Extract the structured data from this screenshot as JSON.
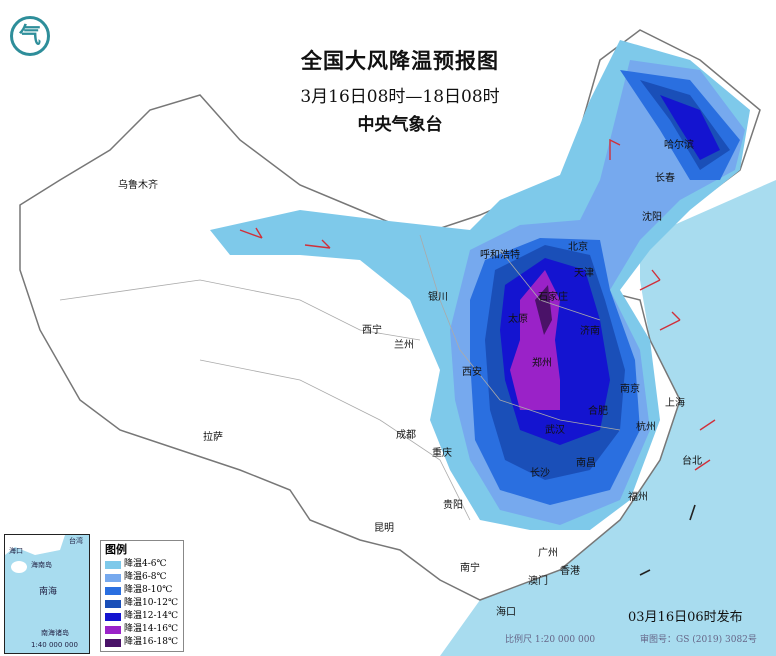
{
  "header": {
    "title": "全国大风降温预报图",
    "period": "3月16日08时—18日08时",
    "issuer": "中央气象台"
  },
  "logo": {
    "icon": "cma-logo-icon",
    "text": "气"
  },
  "colors": {
    "sea": "#a8dcef",
    "land": "#ffffff",
    "border": "#8a8a8a",
    "wind_barb": "#d0303a"
  },
  "legend": {
    "title": "图例",
    "items": [
      {
        "label": "降温4-6℃",
        "color": "#7ec9ea"
      },
      {
        "label": "降温6-8℃",
        "color": "#76a9ee"
      },
      {
        "label": "降温8-10℃",
        "color": "#2a6fe0"
      },
      {
        "label": "降温10-12℃",
        "color": "#1a4fb8"
      },
      {
        "label": "降温12-14℃",
        "color": "#1414d0"
      },
      {
        "label": "降温14-16℃",
        "color": "#9a22c8"
      },
      {
        "label": "降温16-18℃",
        "color": "#4a1268"
      }
    ]
  },
  "cities": [
    {
      "name": "乌鲁木齐"
    },
    {
      "name": "哈尔滨"
    },
    {
      "name": "长春"
    },
    {
      "name": "沈阳"
    },
    {
      "name": "北京"
    },
    {
      "name": "天津"
    },
    {
      "name": "呼和浩特"
    },
    {
      "name": "石家庄"
    },
    {
      "name": "太原"
    },
    {
      "name": "济南"
    },
    {
      "name": "银川"
    },
    {
      "name": "西宁"
    },
    {
      "name": "兰州"
    },
    {
      "name": "西安"
    },
    {
      "name": "郑州"
    },
    {
      "name": "合肥"
    },
    {
      "name": "南京"
    },
    {
      "name": "上海"
    },
    {
      "name": "杭州"
    },
    {
      "name": "武汉"
    },
    {
      "name": "长沙"
    },
    {
      "name": "南昌"
    },
    {
      "name": "成都"
    },
    {
      "name": "重庆"
    },
    {
      "name": "贵阳"
    },
    {
      "name": "昆明"
    },
    {
      "name": "拉萨"
    },
    {
      "name": "福州"
    },
    {
      "name": "台北"
    },
    {
      "name": "广州"
    },
    {
      "name": "南宁"
    },
    {
      "name": "澳门"
    },
    {
      "name": "香港"
    },
    {
      "name": "海口"
    }
  ],
  "inset": {
    "labels": [
      "海口",
      "海南岛",
      "台湾",
      "南海",
      "南海诸岛"
    ],
    "scale": "1:40 000 000"
  },
  "footer": {
    "published": "03月16日06时发布",
    "scale": "比例尺 1:20 000 000",
    "approval": "审图号：GS (2019) 3082号"
  }
}
